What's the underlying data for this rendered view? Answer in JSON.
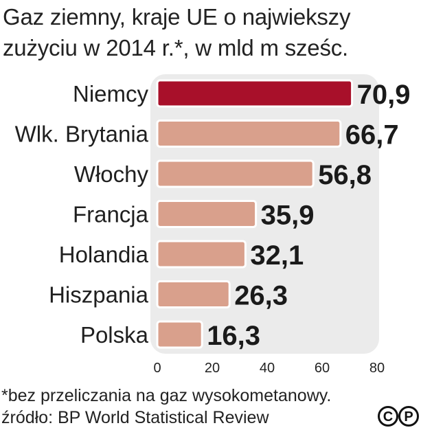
{
  "title": {
    "line1": "Gaz ziemny, kraje UE o najwiekszy",
    "line2": "zużyciu w 2014 r.*, w mld m sześc."
  },
  "footnote": {
    "note": "*bez przeliczania na gaz wysokometanowy.",
    "source": "źródło: BP World Statistical Review"
  },
  "logo": {
    "icon": "cp-logo",
    "text": "CP"
  },
  "colors": {
    "highlight_bar": "#a8102a",
    "bar": "#d9a08c",
    "panel": "#ebebeb"
  },
  "chart_data": {
    "type": "bar",
    "orientation": "horizontal",
    "categories": [
      "Niemcy",
      "Wlk. Brytania",
      "Włochy",
      "Francja",
      "Holandia",
      "Hiszpania",
      "Polska"
    ],
    "values": [
      70.9,
      66.7,
      56.8,
      35.9,
      32.1,
      26.3,
      16.3
    ],
    "value_labels": [
      "70,9",
      "66,7",
      "56,8",
      "35,9",
      "32,1",
      "26,3",
      "16,3"
    ],
    "highlight_index": 0,
    "xlim": [
      0,
      80
    ],
    "xticks": [
      0,
      20,
      40,
      60,
      80
    ],
    "grid": false,
    "title": "Gaz ziemny, kraje UE o najwiekszy zużyciu w 2014 r.*, w mld m sześc."
  }
}
